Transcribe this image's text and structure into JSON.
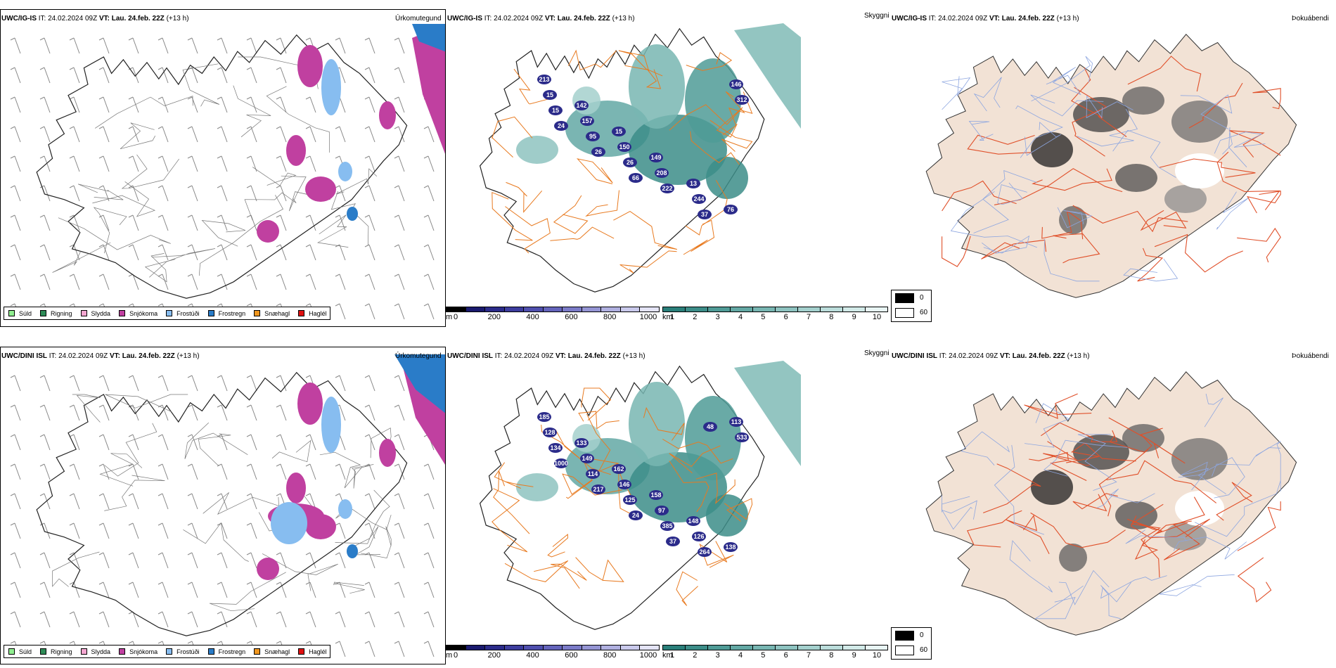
{
  "rows": [
    {
      "model": "UWC/IG-IS",
      "it_label": "IT:",
      "it_value": "24.02.2024 09Z",
      "vt_label": "VT:",
      "vt_value": "Lau. 24.feb. 22Z",
      "lead": "(+13 h)"
    },
    {
      "model": "UWC/DINI ISL",
      "it_label": "IT:",
      "it_value": "24.02.2024 09Z",
      "vt_label": "VT:",
      "vt_value": "Lau. 24.feb. 22Z",
      "lead": "(+13 h)"
    }
  ],
  "titles": {
    "precip": "Úrkomutegund",
    "visibility": "Skyggni",
    "fog": "Þokuábendi"
  },
  "precip_legend": [
    {
      "label": "Súld",
      "color": "#90ee90"
    },
    {
      "label": "Rigning",
      "color": "#2e8b57"
    },
    {
      "label": "Slydda",
      "color": "#f4a6d0"
    },
    {
      "label": "Snjókoma",
      "color": "#c040a0"
    },
    {
      "label": "Frostúði",
      "color": "#87bdf0"
    },
    {
      "label": "Frostregn",
      "color": "#2a7cc8"
    },
    {
      "label": "Snæhagl",
      "color": "#f0961e"
    },
    {
      "label": "Haglél",
      "color": "#e01010"
    }
  ],
  "ceiling_bar": {
    "unit": "m",
    "ticks": [
      "0",
      "200",
      "400",
      "600",
      "800",
      "1000"
    ],
    "colors": [
      "#000000",
      "#1a1a6e",
      "#2b2b8a",
      "#3d3d9e",
      "#4f4fae",
      "#6464bb",
      "#7b7bc8",
      "#9595d4",
      "#b0b0e0",
      "#cacaec",
      "#e4e4f6"
    ]
  },
  "vis_bar": {
    "unit": "km",
    "ticks": [
      "1",
      "2",
      "3",
      "4",
      "5",
      "6",
      "7",
      "8",
      "9",
      "10"
    ],
    "colors": [
      "#2a7f7a",
      "#3c8d88",
      "#4f9b96",
      "#63a8a4",
      "#78b6b2",
      "#8ec3c0",
      "#a4d0cd",
      "#bbdddb",
      "#d2eae8",
      "#e8f5f4"
    ]
  },
  "fog_legend": [
    {
      "label": "0",
      "color": "#000000"
    },
    {
      "label": "60",
      "color": "#ffffff"
    }
  ],
  "vis_labels_top": [
    "213",
    "142",
    "15",
    "149",
    "13",
    "76",
    "15",
    "157",
    "150",
    "208",
    "244",
    "146",
    "15",
    "95",
    "26",
    "222",
    "37",
    "312",
    "24",
    "26",
    "66"
  ],
  "vis_labels_bottom": [
    "185",
    "133",
    "162",
    "158",
    "148",
    "138",
    "128",
    "149",
    "146",
    "97",
    "126",
    "113",
    "134",
    "114",
    "125",
    "385",
    "264",
    "533",
    "1000",
    "217",
    "24",
    "37",
    "48"
  ]
}
